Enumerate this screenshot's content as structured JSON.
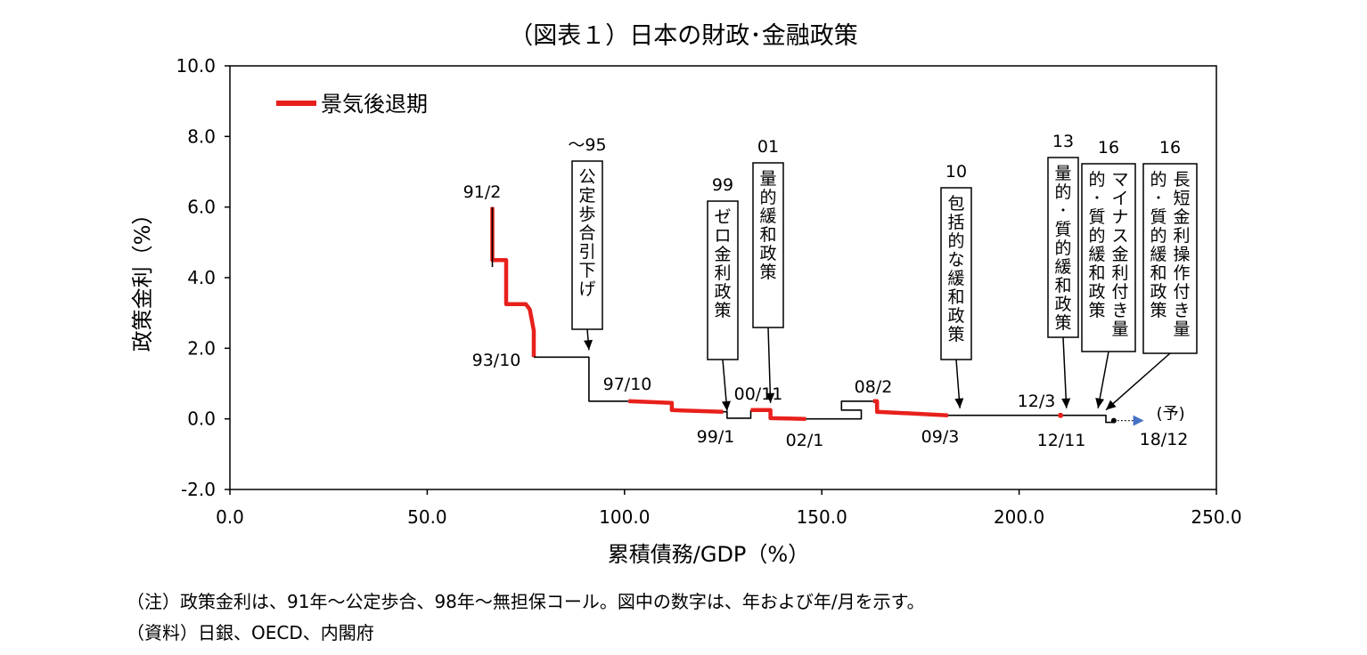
{
  "title": "（図表１）日本の財政･金融政策",
  "notes": {
    "note1": "（注）政策金利は、91年～公定歩合、98年～無担保コール。図中の数字は、年および年/月を示す。",
    "note2": "（資料）日銀、OECD、内閣府"
  },
  "colors": {
    "recession": "#e8201c",
    "line": "#000000",
    "arrow_head": "#4472c4"
  },
  "chart_data": {
    "type": "line",
    "xlabel": "累積債務/GDP（%）",
    "ylabel": "政策金利（%）",
    "xlim": [
      0,
      250
    ],
    "ylim": [
      -2,
      10
    ],
    "x_ticks": [
      "0.0",
      "50.0",
      "100.0",
      "150.0",
      "200.0",
      "250.0"
    ],
    "y_ticks": [
      "10.0",
      "8.0",
      "6.0",
      "4.0",
      "2.0",
      "0.0",
      "-2.0"
    ],
    "x_tick_values": [
      0,
      50,
      100,
      150,
      200,
      250
    ],
    "y_tick_values": [
      10,
      8,
      6,
      4,
      2,
      0,
      -2
    ],
    "grid": false,
    "legend": {
      "position": "top-left",
      "entries": [
        {
          "label": "景気後退期",
          "color": "#e8201c"
        }
      ]
    },
    "series": [
      {
        "name": "景気後退期",
        "style": "recession",
        "points": [
          [
            66.5,
            6.0
          ],
          [
            66.5,
            4.5
          ],
          [
            68,
            4.5
          ],
          [
            70,
            4.5
          ],
          [
            70,
            3.25
          ],
          [
            73,
            3.25
          ],
          [
            75,
            3.25
          ],
          [
            76,
            3.1
          ],
          [
            77,
            2.5
          ],
          [
            77,
            1.75
          ]
        ]
      },
      {
        "style": "normal",
        "points": [
          [
            66.5,
            6.0
          ],
          [
            66.5,
            4.3
          ]
        ]
      },
      {
        "style": "normal",
        "points": [
          [
            77,
            1.75
          ],
          [
            91,
            1.75
          ],
          [
            91,
            0.5
          ],
          [
            101,
            0.5
          ]
        ]
      },
      {
        "style": "recession",
        "points": [
          [
            101,
            0.5
          ],
          [
            112,
            0.45
          ],
          [
            112,
            0.25
          ],
          [
            125,
            0.2
          ]
        ]
      },
      {
        "style": "normal",
        "points": [
          [
            125,
            0.2
          ],
          [
            126,
            0.2
          ],
          [
            126,
            0.02
          ],
          [
            132,
            0.02
          ],
          [
            132,
            0.25
          ]
        ]
      },
      {
        "style": "recession",
        "points": [
          [
            132,
            0.25
          ],
          [
            137,
            0.25
          ],
          [
            137,
            0.02
          ],
          [
            146,
            0.0
          ]
        ]
      },
      {
        "style": "normal",
        "points": [
          [
            146,
            0.0
          ],
          [
            160,
            0.0
          ],
          [
            160,
            0.25
          ],
          [
            155,
            0.25
          ],
          [
            155,
            0.5
          ],
          [
            163,
            0.5
          ]
        ]
      },
      {
        "style": "recession",
        "points": [
          [
            163,
            0.5
          ],
          [
            164,
            0.5
          ],
          [
            164,
            0.2
          ],
          [
            182,
            0.1
          ]
        ]
      },
      {
        "style": "normal",
        "points": [
          [
            182,
            0.1
          ],
          [
            210,
            0.1
          ]
        ]
      },
      {
        "style": "recession",
        "points": [
          [
            210,
            0.1
          ],
          [
            211,
            0.1
          ]
        ]
      },
      {
        "style": "normal",
        "points": [
          [
            211,
            0.1
          ],
          [
            222,
            0.1
          ],
          [
            222,
            -0.1
          ],
          [
            224,
            -0.1
          ],
          [
            224,
            -0.05
          ]
        ]
      }
    ],
    "projection_arrow": {
      "from": [
        224,
        -0.05
      ],
      "to": [
        228,
        -0.05
      ],
      "label": "(予)"
    },
    "annotations": [
      {
        "text": "91/2",
        "x": 66.5,
        "y": 6.0
      },
      {
        "text": "93/10",
        "x": 77,
        "y": 1.75
      },
      {
        "text": "97/10",
        "x": 101,
        "y": 0.5
      },
      {
        "text": "99/1",
        "x": 126,
        "y": 0.02
      },
      {
        "text": "00/11",
        "x": 132,
        "y": 0.25
      },
      {
        "text": "02/1",
        "x": 146,
        "y": 0.0
      },
      {
        "text": "08/2",
        "x": 163,
        "y": 0.5
      },
      {
        "text": "09/3",
        "x": 182,
        "y": 0.1
      },
      {
        "text": "12/3",
        "x": 210,
        "y": 0.1
      },
      {
        "text": "12/11",
        "x": 211,
        "y": 0.1
      },
      {
        "text": "18/12",
        "x": 224,
        "y": -0.05
      }
    ],
    "boxes": [
      {
        "year": "～95",
        "text": "公定歩合引下げ",
        "target": [
          91,
          1.75
        ]
      },
      {
        "year": "99",
        "text": "ゼロ金利政策",
        "target": [
          126,
          0.02
        ]
      },
      {
        "year": "01",
        "text": "量的緩和政策",
        "target": [
          137,
          0.25
        ]
      },
      {
        "year": "10",
        "text": "包括的な緩和政策",
        "target": [
          185,
          0.1
        ]
      },
      {
        "year": "13",
        "text": "量的･質的緩和政策",
        "target": [
          212,
          0.1
        ]
      },
      {
        "year": "16",
        "text": "マイナス金利付き量的･質的緩和政策",
        "target": [
          220,
          0.1
        ]
      },
      {
        "year": "16",
        "text": "長短金利操作付き量的･質的緩和政策",
        "target": [
          222,
          0.05
        ]
      }
    ]
  }
}
